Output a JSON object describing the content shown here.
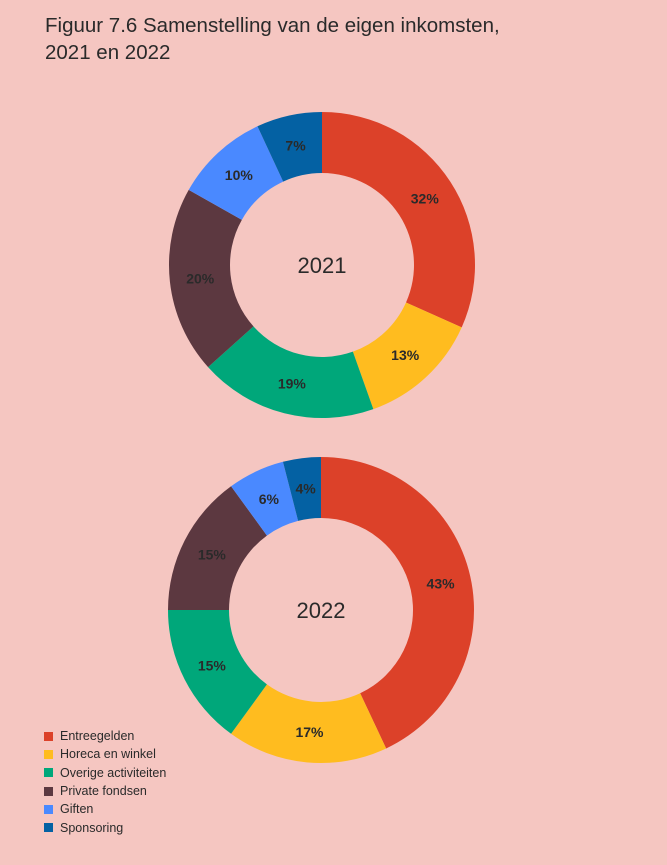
{
  "title": {
    "line1": "Figuur 7.6 Samenstelling van de eigen inkomsten,",
    "line2": "2021 en 2022"
  },
  "chart_data": [
    {
      "type": "pie",
      "variant": "donut",
      "center_label": "2021",
      "categories": [
        "Entreegelden",
        "Horeca en winkel",
        "Overige activiteiten",
        "Private fondsen",
        "Giften",
        "Sponsoring"
      ],
      "values": [
        32,
        13,
        19,
        20,
        10,
        7
      ],
      "labels": [
        "32%",
        "13%",
        "19%",
        "20%",
        "10%",
        "7%"
      ],
      "colors": [
        "#dc4129",
        "#ffbc1f",
        "#00a77a",
        "#5c3840",
        "#4a89ff",
        "#0461a3"
      ]
    },
    {
      "type": "pie",
      "variant": "donut",
      "center_label": "2022",
      "categories": [
        "Entreegelden",
        "Horeca en winkel",
        "Overige activiteiten",
        "Private fondsen",
        "Giften",
        "Sponsoring"
      ],
      "values": [
        43,
        17,
        15,
        15,
        6,
        4
      ],
      "labels": [
        "43%",
        "17%",
        "15%",
        "15%",
        "6%",
        "4%"
      ],
      "colors": [
        "#dc4129",
        "#ffbc1f",
        "#00a77a",
        "#5c3840",
        "#4a89ff",
        "#0461a3"
      ]
    }
  ],
  "legend": {
    "position": "bottom-left",
    "items": [
      {
        "label": "Entreegelden",
        "color": "#dc4129"
      },
      {
        "label": "Horeca en winkel",
        "color": "#ffbc1f"
      },
      {
        "label": "Overige activiteiten",
        "color": "#00a77a"
      },
      {
        "label": "Private fondsen",
        "color": "#5c3840"
      },
      {
        "label": "Giften",
        "color": "#4a89ff"
      },
      {
        "label": "Sponsoring",
        "color": "#0461a3"
      }
    ]
  }
}
